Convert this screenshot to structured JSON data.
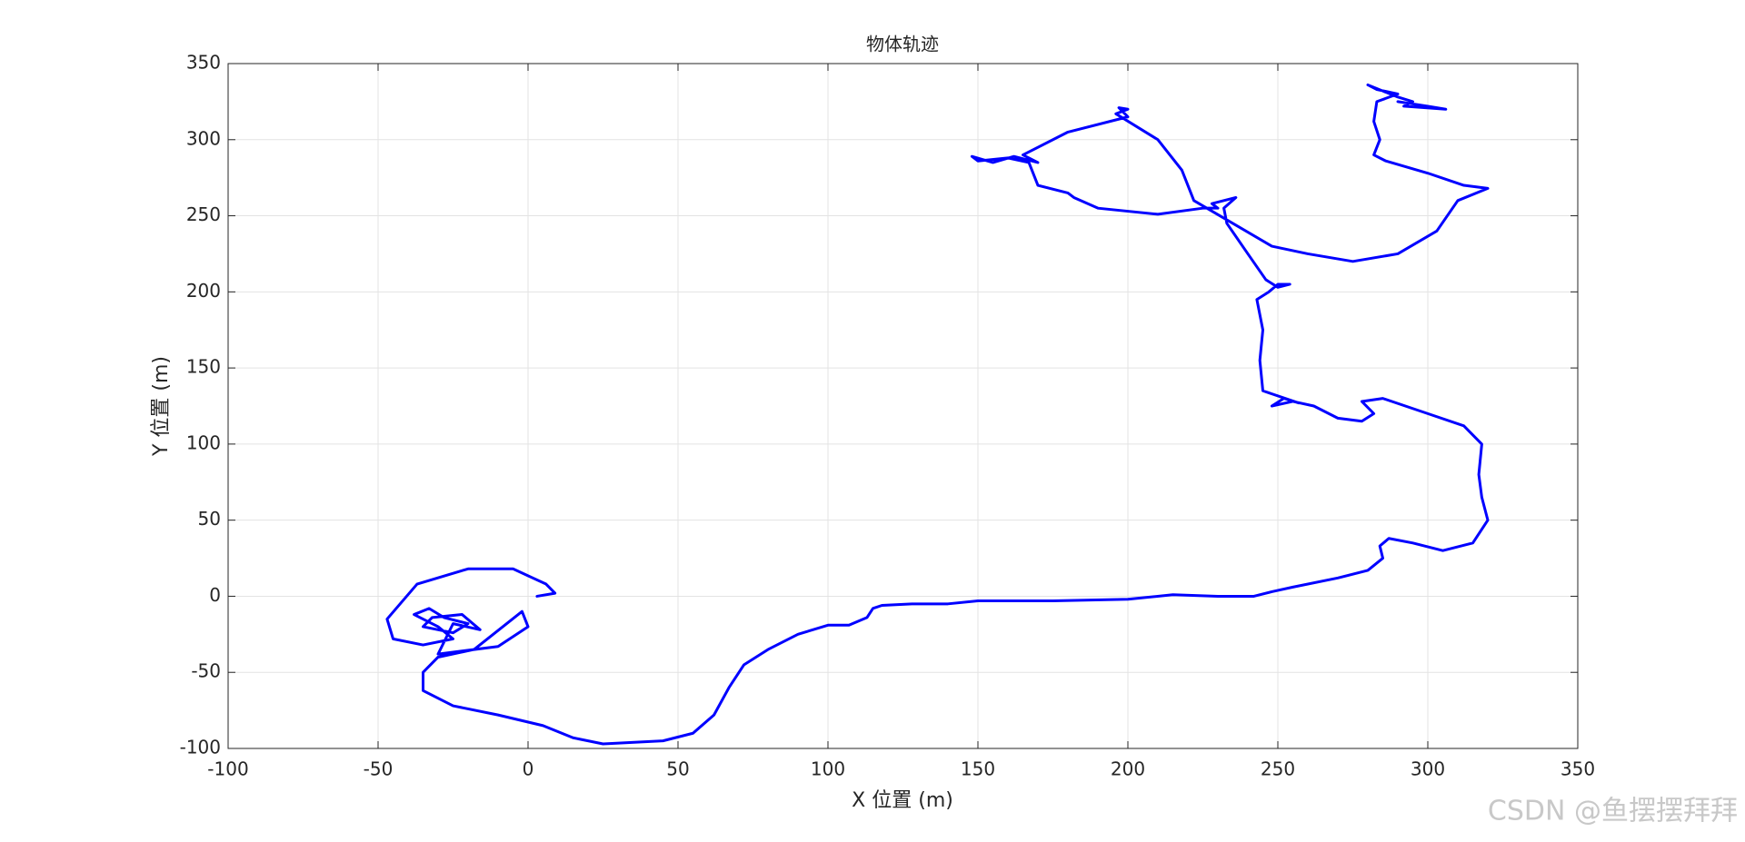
{
  "chart_data": {
    "type": "line",
    "title": "物体轨迹",
    "x_label": "X 位置 (m)",
    "y_label": "Y 位置 (m)",
    "watermark": "CSDN @鱼摆摆拜拜",
    "grid": true,
    "xlim": [
      -100,
      350
    ],
    "xticks": [
      -100,
      -50,
      0,
      50,
      100,
      150,
      200,
      250,
      300,
      350
    ],
    "ylim": [
      -100,
      350
    ],
    "yticks": [
      -100,
      -50,
      0,
      50,
      100,
      150,
      200,
      250,
      300,
      350
    ],
    "x": [
      3,
      9,
      6,
      -5,
      -20,
      -37,
      -47,
      -45,
      -35,
      -25,
      -30,
      -38,
      -33,
      -28,
      -20,
      -25,
      -35,
      -32,
      -22,
      -16,
      -25,
      -30,
      -10,
      0,
      -2,
      -18,
      -30,
      -35,
      -35,
      -25,
      -10,
      5,
      15,
      25,
      45,
      55,
      62,
      67,
      72,
      80,
      90,
      100,
      107,
      113,
      115,
      118,
      128,
      140,
      150,
      175,
      200,
      215,
      230,
      242,
      248,
      255,
      270,
      280,
      285,
      284,
      287,
      295,
      305,
      315,
      320,
      318,
      317,
      318,
      312,
      300,
      285,
      278,
      282,
      278,
      270,
      262,
      255,
      248,
      252,
      257,
      245,
      244,
      245,
      243,
      247,
      250,
      254,
      250,
      246,
      240,
      233,
      232,
      236,
      228,
      230,
      225,
      210,
      190,
      182,
      180,
      170,
      167,
      160,
      150,
      148,
      155,
      162,
      170,
      165,
      180,
      200,
      197,
      200,
      196,
      210,
      218,
      222,
      235,
      248,
      260,
      275,
      290,
      303,
      310,
      320,
      312,
      300,
      286,
      282,
      284,
      282,
      283,
      290,
      283,
      280,
      290,
      295,
      292,
      306,
      300,
      290
    ],
    "y": [
      0,
      2,
      8,
      18,
      18,
      8,
      -15,
      -28,
      -32,
      -28,
      -20,
      -12,
      -8,
      -14,
      -18,
      -24,
      -20,
      -14,
      -12,
      -22,
      -18,
      -38,
      -33,
      -20,
      -10,
      -35,
      -40,
      -50,
      -62,
      -72,
      -78,
      -85,
      -93,
      -97,
      -95,
      -90,
      -78,
      -60,
      -45,
      -35,
      -25,
      -19,
      -19,
      -14,
      -8,
      -6,
      -5,
      -5,
      -3,
      -3,
      -2,
      1,
      0,
      0,
      3,
      6,
      12,
      17,
      25,
      33,
      38,
      35,
      30,
      35,
      50,
      65,
      80,
      100,
      112,
      120,
      130,
      128,
      120,
      115,
      117,
      125,
      128,
      125,
      130,
      127,
      135,
      155,
      175,
      195,
      200,
      205,
      205,
      203,
      208,
      225,
      245,
      255,
      262,
      258,
      255,
      255,
      251,
      255,
      262,
      265,
      270,
      285,
      288,
      286,
      289,
      285,
      289,
      285,
      290,
      305,
      315,
      321,
      320,
      317,
      300,
      280,
      260,
      245,
      230,
      225,
      220,
      225,
      240,
      260,
      268,
      270,
      278,
      286,
      290,
      300,
      312,
      325,
      330,
      333,
      336,
      328,
      325,
      322,
      320,
      322,
      325
    ],
    "color": "#0000ff"
  }
}
